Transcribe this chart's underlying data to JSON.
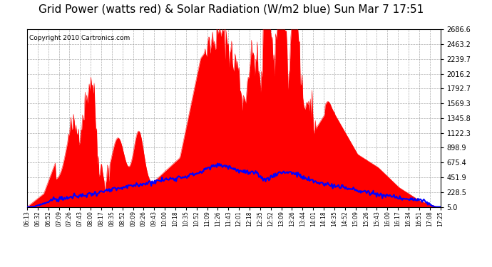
{
  "title": "Grid Power (watts red) & Solar Radiation (W/m2 blue) Sun Mar 7 17:51",
  "copyright": "Copyright 2010 Cartronics.com",
  "title_fontsize": 11,
  "background_color": "#ffffff",
  "plot_bg_color": "#ffffff",
  "grid_color": "#aaaaaa",
  "red_color": "#ff0000",
  "blue_color": "#0000ff",
  "ymin": 5.0,
  "ymax": 2686.6,
  "yticks": [
    5.0,
    228.5,
    451.9,
    675.4,
    898.9,
    1122.3,
    1345.8,
    1569.3,
    1792.7,
    2016.2,
    2239.7,
    2463.2,
    2686.6
  ],
  "xtick_labels": [
    "06:13",
    "06:32",
    "06:52",
    "07:09",
    "07:26",
    "07:43",
    "08:00",
    "08:17",
    "08:35",
    "08:52",
    "09:09",
    "09:26",
    "09:43",
    "10:00",
    "10:18",
    "10:35",
    "10:52",
    "11:09",
    "11:26",
    "11:43",
    "12:01",
    "12:18",
    "12:35",
    "12:52",
    "13:09",
    "13:26",
    "13:44",
    "14:01",
    "14:18",
    "14:35",
    "14:52",
    "15:09",
    "15:26",
    "15:43",
    "16:00",
    "16:17",
    "16:34",
    "16:51",
    "17:08",
    "17:25"
  ]
}
